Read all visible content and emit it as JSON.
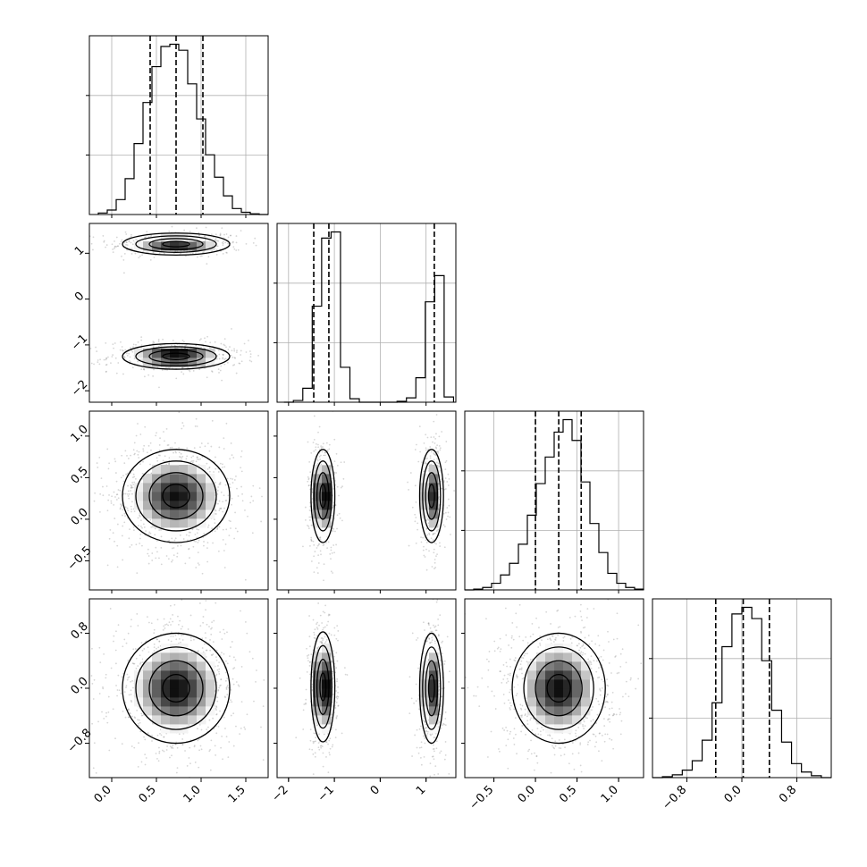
{
  "chart_data": {
    "type": "corner",
    "parameters": [
      {
        "id": "p0",
        "range": [
          -0.25,
          1.75
        ],
        "ticks": [
          0.0,
          0.5,
          1.0,
          1.5
        ],
        "tick_labels": [
          "0.0",
          "0.5",
          "1.0",
          "1.5"
        ],
        "quantiles": [
          0.43,
          0.72,
          1.02
        ]
      },
      {
        "id": "p1",
        "range": [
          -2.25,
          1.65
        ],
        "ticks": [
          -2,
          -1,
          0,
          1
        ],
        "tick_labels": [
          "−2",
          "−1",
          "0",
          "1"
        ],
        "quantiles": [
          -1.45,
          -1.12,
          1.18
        ]
      },
      {
        "id": "p2",
        "range": [
          -0.85,
          1.3
        ],
        "ticks": [
          -0.5,
          0.0,
          0.5,
          1.0
        ],
        "tick_labels": [
          "−0.5",
          "0.0",
          "0.5",
          "1.0"
        ],
        "quantiles": [
          0.0,
          0.28,
          0.55
        ]
      },
      {
        "id": "p3",
        "range": [
          -1.3,
          1.3
        ],
        "ticks": [
          -0.8,
          0.0,
          0.8
        ],
        "tick_labels": [
          "−0.8",
          "0.0",
          "0.8"
        ],
        "quantiles": [
          -0.38,
          0.02,
          0.4
        ]
      }
    ],
    "histograms": [
      {
        "param": 0,
        "bin_edges_range": [
          -0.15,
          1.75
        ],
        "counts": [
          2,
          6,
          20,
          48,
          95,
          150,
          198,
          225,
          228,
          220,
          175,
          128,
          80,
          50,
          25,
          8,
          3,
          1,
          0
        ]
      },
      {
        "param": 1,
        "bin_edges_range": [
          -2.1,
          1.6
        ],
        "counts": [
          0,
          2,
          16,
          110,
          188,
          195,
          40,
          4,
          0,
          0,
          0,
          0,
          1,
          5,
          28,
          115,
          145,
          6
        ]
      },
      {
        "param": 2,
        "bin_edges_range": [
          -0.85,
          1.3
        ],
        "counts": [
          0,
          1,
          3,
          8,
          18,
          32,
          55,
          90,
          128,
          160,
          190,
          205,
          180,
          130,
          80,
          45,
          20,
          8,
          3,
          1
        ]
      },
      {
        "param": 3,
        "bin_edges_range": [
          -1.3,
          1.3
        ],
        "counts": [
          0,
          1,
          3,
          8,
          18,
          40,
          80,
          140,
          175,
          182,
          170,
          125,
          72,
          38,
          15,
          6,
          2,
          0
        ]
      }
    ],
    "joint_panels": [
      {
        "x": 0,
        "y": 1,
        "modes": [
          {
            "cx": 0.72,
            "cy": 1.2,
            "sx": 0.3,
            "sy": 0.12,
            "w": 0.45
          },
          {
            "cx": 0.72,
            "cy": -1.25,
            "sx": 0.3,
            "sy": 0.14,
            "w": 0.55
          }
        ]
      },
      {
        "x": 0,
        "y": 2,
        "modes": [
          {
            "cx": 0.72,
            "cy": 0.28,
            "sx": 0.3,
            "sy": 0.28,
            "w": 1.0
          }
        ]
      },
      {
        "x": 1,
        "y": 2,
        "modes": [
          {
            "cx": -1.25,
            "cy": 0.28,
            "sx": 0.13,
            "sy": 0.28,
            "w": 0.55
          },
          {
            "cx": 1.12,
            "cy": 0.28,
            "sx": 0.13,
            "sy": 0.28,
            "w": 0.45
          }
        ]
      },
      {
        "x": 0,
        "y": 3,
        "modes": [
          {
            "cx": 0.72,
            "cy": 0.0,
            "sx": 0.3,
            "sy": 0.4,
            "w": 1.0
          }
        ]
      },
      {
        "x": 1,
        "y": 3,
        "modes": [
          {
            "cx": -1.25,
            "cy": 0.02,
            "sx": 0.13,
            "sy": 0.4,
            "w": 0.55
          },
          {
            "cx": 1.12,
            "cy": 0.0,
            "sx": 0.13,
            "sy": 0.4,
            "w": 0.45
          }
        ]
      },
      {
        "x": 2,
        "y": 3,
        "modes": [
          {
            "cx": 0.28,
            "cy": 0.0,
            "sx": 0.28,
            "sy": 0.4,
            "w": 1.0
          }
        ]
      }
    ],
    "grid": true,
    "contour_levels": 4
  }
}
